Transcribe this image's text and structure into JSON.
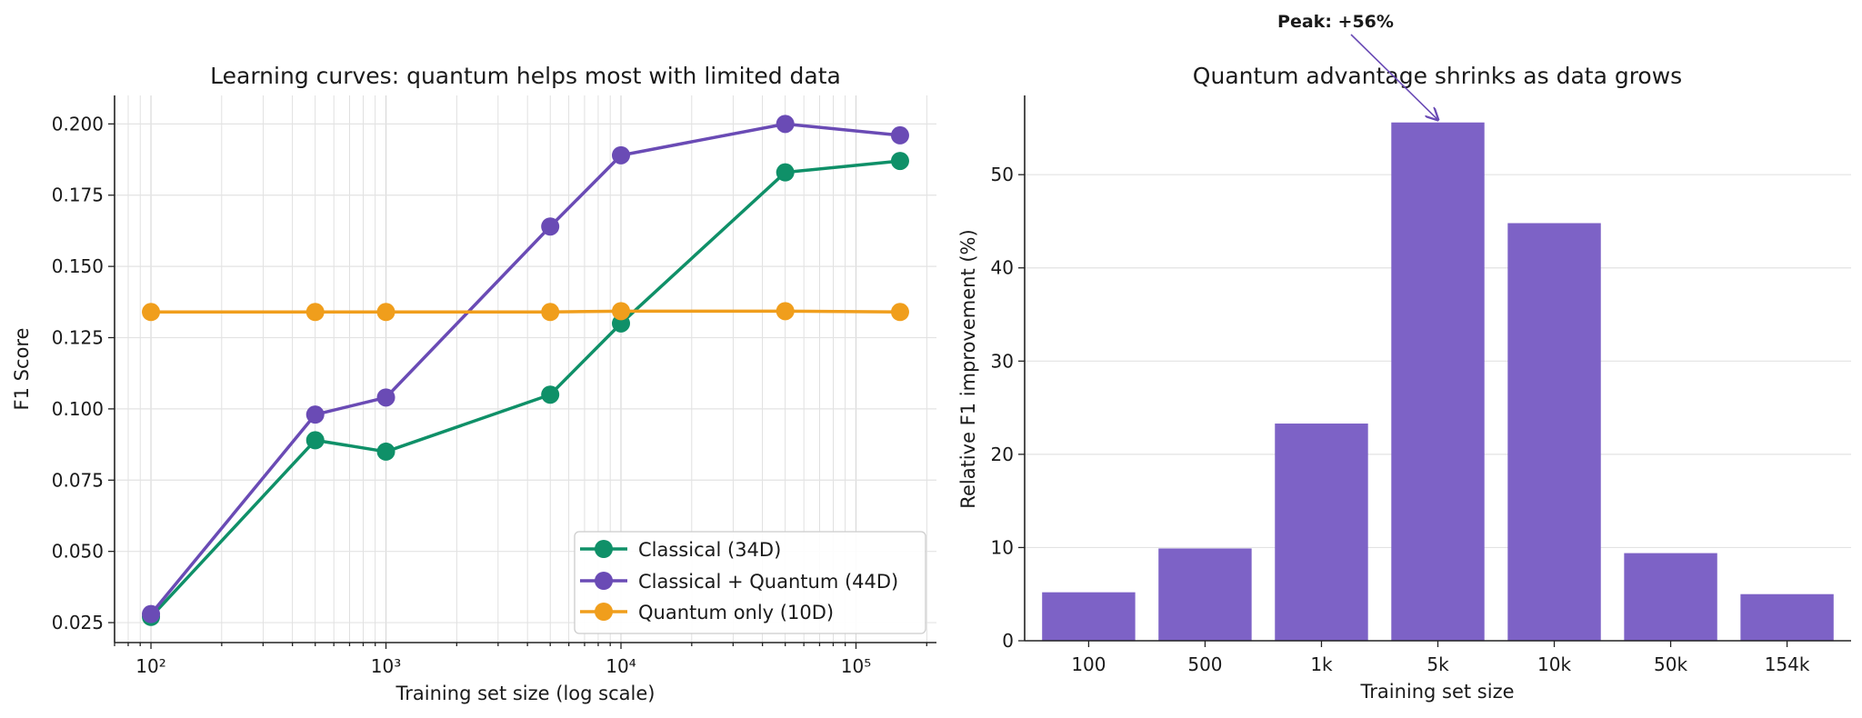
{
  "chart_data": [
    {
      "type": "line",
      "title": "Learning curves: quantum helps most with limited data",
      "xlabel": "Training set size (log scale)",
      "ylabel": "F1 Score",
      "xscale": "log",
      "xlim": [
        70,
        220000
      ],
      "ylim": [
        0.018,
        0.21
      ],
      "xticks": [
        {
          "value": 100,
          "label": "10²"
        },
        {
          "value": 1000,
          "label": "10³"
        },
        {
          "value": 10000,
          "label": "10⁴"
        },
        {
          "value": 100000,
          "label": "10⁵"
        }
      ],
      "yticks": [
        {
          "value": 0.025,
          "label": "0.025"
        },
        {
          "value": 0.05,
          "label": "0.050"
        },
        {
          "value": 0.075,
          "label": "0.075"
        },
        {
          "value": 0.1,
          "label": "0.100"
        },
        {
          "value": 0.125,
          "label": "0.125"
        },
        {
          "value": 0.15,
          "label": "0.150"
        },
        {
          "value": 0.175,
          "label": "0.175"
        },
        {
          "value": 0.2,
          "label": "0.200"
        }
      ],
      "grid": true,
      "legend_position": "lower-right",
      "x": [
        100,
        500,
        1000,
        5000,
        10000,
        50000,
        154000
      ],
      "series": [
        {
          "name": "Classical (34D)",
          "color": "#0f9068",
          "values": [
            0.027,
            0.089,
            0.085,
            0.105,
            0.13,
            0.183,
            0.187
          ]
        },
        {
          "name": "Classical + Quantum (44D)",
          "color": "#6a4bb5",
          "values": [
            0.028,
            0.098,
            0.104,
            0.164,
            0.189,
            0.2,
            0.196
          ]
        },
        {
          "name": "Quantum only (10D)",
          "color": "#f09e1c",
          "values": [
            0.134,
            0.134,
            0.134,
            0.134,
            0.1343,
            0.1343,
            0.134
          ]
        }
      ]
    },
    {
      "type": "bar",
      "title": "Quantum advantage shrinks as data grows",
      "xlabel": "Training set size",
      "ylabel": "Relative F1 improvement (%)",
      "ylim": [
        0,
        58.5
      ],
      "yticks": [
        0,
        10,
        20,
        30,
        40,
        50
      ],
      "grid": true,
      "color": "#7d62c6",
      "categories": [
        "100",
        "500",
        "1k",
        "5k",
        "10k",
        "50k",
        "154k"
      ],
      "values": [
        5.2,
        9.9,
        23.3,
        55.6,
        44.8,
        9.4,
        5.0
      ],
      "annotation": {
        "text": "Peak: +56%",
        "category": "5k",
        "value": 55.6,
        "color": "#6a4bb5"
      }
    }
  ]
}
